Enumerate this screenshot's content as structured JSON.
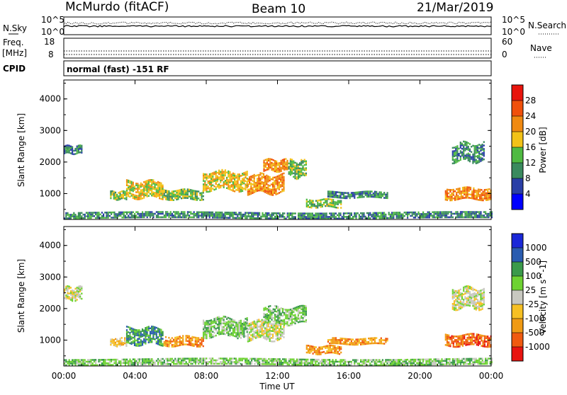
{
  "header": {
    "station": "McMurdo (fitACF)",
    "beam": "Beam 10",
    "date": "21/Mar/2019"
  },
  "noise_panel": {
    "left_label": "N.Sky",
    "right_label": "N.Search",
    "left_ticks": [
      "10^5",
      "10^0"
    ],
    "right_ticks": [
      "10^5",
      "10^0"
    ]
  },
  "freq_panel": {
    "left_label_1": "Freq.",
    "left_label_2": "[MHz]",
    "right_label": "Nave",
    "left_ticks": [
      "18",
      "8"
    ],
    "right_ticks": [
      "60",
      "0"
    ]
  },
  "cpid": {
    "label": "CPID",
    "value": "normal (fast) -151 RF"
  },
  "colors": {
    "power": [
      "#0000ff",
      "#2a3fa6",
      "#3a8a5e",
      "#4fba42",
      "#f2c218",
      "#f08a12",
      "#f0500c",
      "#e8140c"
    ],
    "velocity": [
      "#e81410",
      "#f05a10",
      "#f09a14",
      "#f6c024",
      "#c8c8c0",
      "#6ed232",
      "#3a9a4a",
      "#2a5cb0",
      "#1a28d8"
    ]
  },
  "chart_data": [
    {
      "type": "heatmap",
      "title": "Power",
      "ylabel": "Slant Range [km]",
      "yticks": [
        "4000",
        "3000",
        "2000",
        "1000"
      ],
      "ylim": [
        180,
        4600
      ],
      "xticks": [
        "00:00",
        "04:00",
        "08:00",
        "12:00",
        "16:00",
        "20:00",
        "00:00"
      ],
      "xlim": [
        0,
        24
      ],
      "colorbar_label": "Power [dB]",
      "colorbar_ticks": [
        "28",
        "24",
        "20",
        "16",
        "12",
        "8",
        "4"
      ],
      "bands": [
        {
          "t0": 0.0,
          "t1": 1.0,
          "r_lo": 2250,
          "r_hi": 2500,
          "level": 2
        },
        {
          "t0": 2.6,
          "t1": 3.5,
          "r_lo": 800,
          "r_hi": 1050,
          "level": 3
        },
        {
          "t0": 3.5,
          "t1": 5.6,
          "r_lo": 850,
          "r_hi": 1350,
          "level": 4
        },
        {
          "t0": 5.6,
          "t1": 7.8,
          "r_lo": 800,
          "r_hi": 1100,
          "level": 3
        },
        {
          "t0": 7.8,
          "t1": 10.3,
          "r_lo": 1100,
          "r_hi": 1700,
          "level": 4
        },
        {
          "t0": 10.3,
          "t1": 12.4,
          "r_lo": 1000,
          "r_hi": 1600,
          "level": 5
        },
        {
          "t0": 11.2,
          "t1": 12.6,
          "r_lo": 1700,
          "r_hi": 2050,
          "level": 5
        },
        {
          "t0": 12.6,
          "t1": 13.6,
          "r_lo": 1500,
          "r_hi": 2050,
          "level": 3
        },
        {
          "t0": 14.8,
          "t1": 18.2,
          "r_lo": 850,
          "r_hi": 1050,
          "level": 2
        },
        {
          "t0": 13.6,
          "t1": 15.6,
          "r_lo": 550,
          "r_hi": 800,
          "level": 3
        },
        {
          "t0": 21.4,
          "t1": 24.0,
          "r_lo": 800,
          "r_hi": 1150,
          "level": 5
        },
        {
          "t0": 21.8,
          "t1": 23.6,
          "r_lo": 2000,
          "r_hi": 2600,
          "level": 2
        },
        {
          "t0": 0.0,
          "t1": 24.0,
          "r_lo": 200,
          "r_hi": 400,
          "level": 2
        }
      ]
    },
    {
      "type": "heatmap",
      "title": "Velocity",
      "ylabel": "Slant Range [km]",
      "yticks": [
        "4000",
        "3000",
        "2000",
        "1000"
      ],
      "ylim": [
        180,
        4600
      ],
      "xticks": [
        "00:00",
        "04:00",
        "08:00",
        "12:00",
        "16:00",
        "20:00",
        "00:00"
      ],
      "xlim": [
        0,
        24
      ],
      "xlabel": "Time UT",
      "colorbar_label": "Velocity [m s^-1]",
      "colorbar_ticks": [
        "1000",
        "500",
        "100",
        "25",
        "-25",
        "-100",
        "-500",
        "-1000"
      ],
      "bands": [
        {
          "t0": 0.0,
          "t1": 1.0,
          "r_lo": 2250,
          "r_hi": 2650,
          "level": 4
        },
        {
          "t0": 2.6,
          "t1": 3.5,
          "r_lo": 800,
          "r_hi": 1050,
          "level": 3
        },
        {
          "t0": 3.5,
          "t1": 5.6,
          "r_lo": 850,
          "r_hi": 1350,
          "level": 6
        },
        {
          "t0": 5.6,
          "t1": 7.8,
          "r_lo": 800,
          "r_hi": 1100,
          "level": 2
        },
        {
          "t0": 7.8,
          "t1": 10.3,
          "r_lo": 1100,
          "r_hi": 1700,
          "level": 5
        },
        {
          "t0": 10.3,
          "t1": 12.4,
          "r_lo": 1000,
          "r_hi": 1600,
          "level": 4
        },
        {
          "t0": 11.2,
          "t1": 13.6,
          "r_lo": 1500,
          "r_hi": 2050,
          "level": 5
        },
        {
          "t0": 14.8,
          "t1": 18.2,
          "r_lo": 850,
          "r_hi": 1050,
          "level": 2
        },
        {
          "t0": 13.6,
          "t1": 15.6,
          "r_lo": 550,
          "r_hi": 800,
          "level": 2
        },
        {
          "t0": 21.4,
          "t1": 24.0,
          "r_lo": 800,
          "r_hi": 1150,
          "level": 1
        },
        {
          "t0": 21.8,
          "t1": 23.6,
          "r_lo": 2000,
          "r_hi": 2650,
          "level": 4
        },
        {
          "t0": 0.0,
          "t1": 24.0,
          "r_lo": 200,
          "r_hi": 400,
          "level": 5
        }
      ]
    }
  ]
}
